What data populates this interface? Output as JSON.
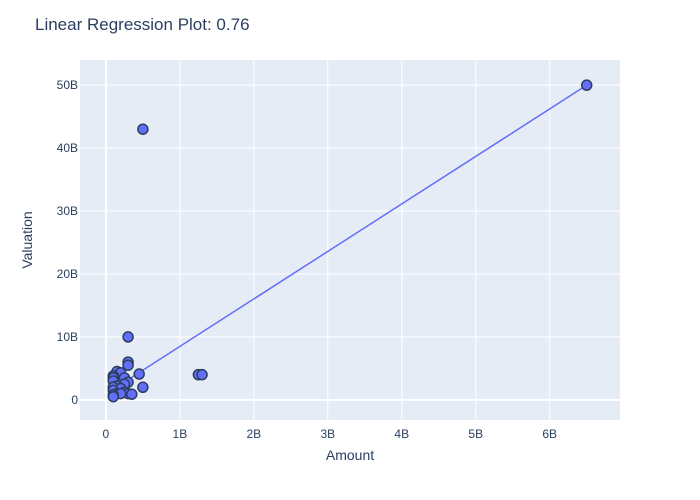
{
  "chart_data": {
    "type": "scatter",
    "title": "Linear Regression Plot: 0.76",
    "xlabel": "Amount",
    "ylabel": "Valuation",
    "xlim": [
      -0.35,
      6.95
    ],
    "ylim": [
      -3.2,
      54
    ],
    "x_unit": "B",
    "y_unit": "B",
    "x_ticks": [
      0,
      1,
      2,
      3,
      4,
      5,
      6
    ],
    "x_tick_labels": [
      "0",
      "1B",
      "2B",
      "3B",
      "4B",
      "5B",
      "6B"
    ],
    "y_ticks": [
      0,
      10,
      20,
      30,
      40,
      50
    ],
    "y_tick_labels": [
      "0",
      "10B",
      "20B",
      "30B",
      "40B",
      "50B"
    ],
    "grid": true,
    "plot_bgcolor": "#e5ecf6",
    "marker_color": "#636efa",
    "marker_edge_color": "#2a3f5f",
    "line_color": "#636efa",
    "series": [
      {
        "mode": "markers",
        "points": [
          {
            "x": 6.5,
            "y": 50
          },
          {
            "x": 0.5,
            "y": 43
          },
          {
            "x": 0.3,
            "y": 10
          },
          {
            "x": 0.3,
            "y": 6
          },
          {
            "x": 0.3,
            "y": 5.5
          },
          {
            "x": 0.15,
            "y": 4.5
          },
          {
            "x": 0.2,
            "y": 4.3
          },
          {
            "x": 0.45,
            "y": 4.1
          },
          {
            "x": 1.25,
            "y": 4
          },
          {
            "x": 1.3,
            "y": 4
          },
          {
            "x": 0.1,
            "y": 3.8
          },
          {
            "x": 0.1,
            "y": 3.5
          },
          {
            "x": 0.25,
            "y": 3.5
          },
          {
            "x": 0.1,
            "y": 3
          },
          {
            "x": 0.3,
            "y": 2.8
          },
          {
            "x": 0.25,
            "y": 2.5
          },
          {
            "x": 0.15,
            "y": 2.2
          },
          {
            "x": 0.5,
            "y": 2
          },
          {
            "x": 0.1,
            "y": 2
          },
          {
            "x": 0.2,
            "y": 1.8
          },
          {
            "x": 0.1,
            "y": 1.5
          },
          {
            "x": 0.25,
            "y": 1.2
          },
          {
            "x": 0.15,
            "y": 1
          },
          {
            "x": 0.3,
            "y": 1
          },
          {
            "x": 0.35,
            "y": 0.9
          },
          {
            "x": 0.2,
            "y": 1
          },
          {
            "x": 0.1,
            "y": 0.8
          },
          {
            "x": 0.1,
            "y": 0.5
          }
        ]
      },
      {
        "mode": "lines",
        "points": [
          {
            "x": 0.1,
            "y": 1.7
          },
          {
            "x": 6.5,
            "y": 50
          }
        ]
      }
    ]
  }
}
